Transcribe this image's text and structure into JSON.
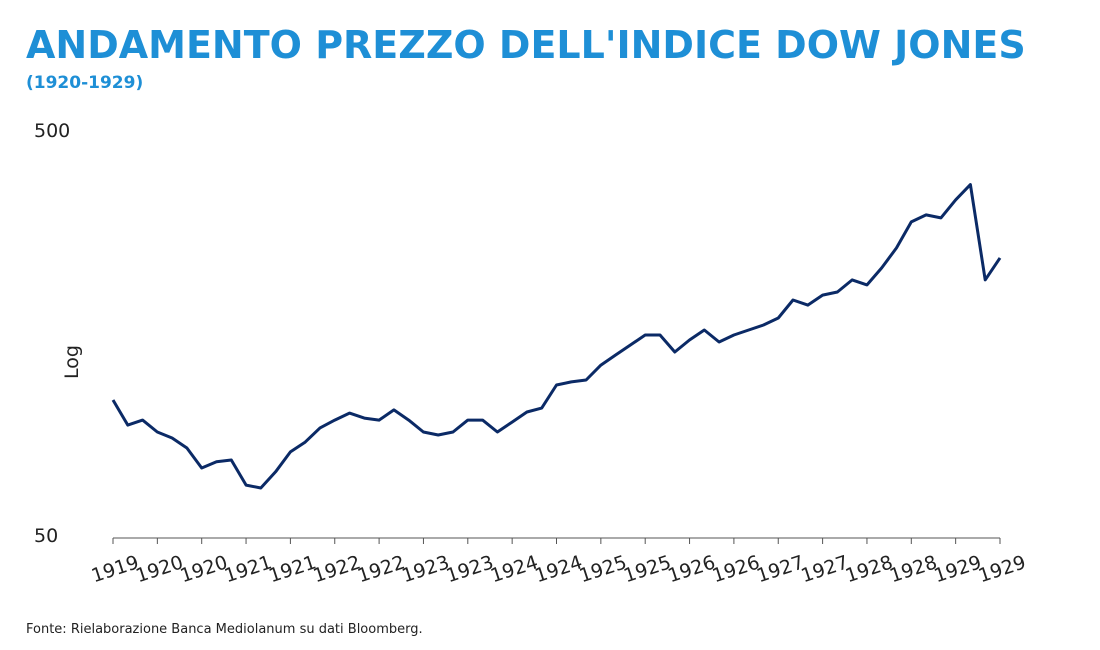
{
  "chart_data": {
    "type": "line",
    "title": "ANDAMENTO PREZZO DELL'INDICE DOW JONES",
    "subtitle": "(1920-1929)",
    "y_label": "Log",
    "source": "Fonte: Rielaborazione Banca Mediolanum su dati Bloomberg.",
    "log_scale": true,
    "grid": false,
    "ylim": [
      50,
      500
    ],
    "yticks": [
      50,
      500
    ],
    "categories": [
      "1919",
      null,
      null,
      "1920",
      null,
      null,
      "1920",
      null,
      null,
      "1921",
      null,
      null,
      "1921",
      null,
      null,
      "1922",
      null,
      null,
      "1922",
      null,
      null,
      "1923",
      null,
      null,
      "1923",
      null,
      null,
      "1924",
      null,
      null,
      "1924",
      null,
      null,
      "1925",
      null,
      null,
      "1925",
      null,
      null,
      "1926",
      null,
      null,
      "1926",
      null,
      null,
      "1927",
      null,
      null,
      "1927",
      null,
      null,
      "1928",
      null,
      null,
      "1928",
      null,
      null,
      "1929",
      null,
      null,
      "1929"
    ],
    "series": [
      {
        "color": "#0b2a66",
        "values": [
          107.7,
          93.4,
          96.1,
          89.8,
          86.8,
          82.0,
          73.2,
          75.8,
          76.6,
          66.4,
          65.3,
          71.6,
          80.2,
          84.8,
          91.9,
          96.1,
          100,
          97.2,
          96.1,
          101.8,
          96.1,
          89.8,
          88.3,
          89.8,
          96.1,
          96.1,
          89.8,
          95.0,
          100.6,
          102.9,
          117.3,
          119.4,
          120.7,
          131.4,
          139.1,
          147.3,
          155.9,
          155.9,
          141.5,
          151.5,
          160.4,
          149.8,
          155.9,
          160.4,
          165.0,
          171.7,
          190.2,
          184.8,
          195.6,
          199.1,
          213.2,
          207.2,
          228.3,
          255.8,
          296.5,
          308.6,
          303.4,
          336.1,
          366.5,
          213.2,
          241.6
        ]
      }
    ]
  }
}
